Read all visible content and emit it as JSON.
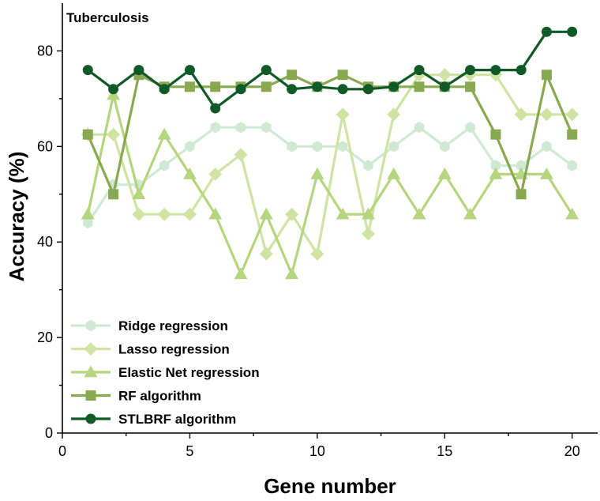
{
  "chart_data": {
    "type": "line",
    "title": "Tuberculosis",
    "xlabel": "Gene number",
    "ylabel": "Accuracy (%)",
    "xlim": [
      0,
      21
    ],
    "ylim": [
      0,
      90
    ],
    "xticks": [
      0,
      5,
      10,
      15,
      20
    ],
    "yticks": [
      0,
      20,
      40,
      60,
      80
    ],
    "legend_position": "bottom-left",
    "x": [
      1,
      2,
      3,
      4,
      5,
      6,
      7,
      8,
      9,
      10,
      11,
      12,
      13,
      14,
      15,
      16,
      17,
      18,
      19,
      20
    ],
    "series": [
      {
        "name": "Ridge regression",
        "marker": "hexagon",
        "color": "#cfe9d4",
        "values": [
          44,
          52,
          52,
          56,
          60,
          64,
          64,
          64,
          60,
          60,
          60,
          56,
          60,
          64,
          60,
          64,
          56,
          56,
          60,
          56
        ]
      },
      {
        "name": "Lasso regression",
        "marker": "diamond",
        "color": "#cfe3a3",
        "values": [
          62.5,
          62.5,
          45.8,
          45.8,
          45.8,
          54.2,
          58.3,
          37.5,
          45.8,
          37.5,
          66.7,
          41.7,
          66.7,
          75,
          75,
          75,
          75,
          66.7,
          66.7,
          66.7
        ]
      },
      {
        "name": "Elastic Net regression",
        "marker": "triangle",
        "color": "#b5d57e",
        "values": [
          45.8,
          70.8,
          50,
          62.5,
          54.2,
          45.8,
          33.3,
          45.8,
          33.3,
          54.2,
          45.8,
          45.8,
          54.2,
          45.8,
          54.2,
          45.8,
          54.2,
          54.2,
          54.2,
          45.8
        ]
      },
      {
        "name": "RF algorithm",
        "marker": "square",
        "color": "#89a950",
        "values": [
          62.5,
          50,
          75,
          72.5,
          72.5,
          72.5,
          72.5,
          72.5,
          75,
          72.5,
          75,
          72.5,
          72.5,
          72.5,
          72.5,
          72.5,
          62.5,
          50,
          75,
          62.5
        ]
      },
      {
        "name": "STLBRF algorithm",
        "marker": "circle",
        "color": "#0f5a26",
        "values": [
          76,
          72,
          76,
          72,
          76,
          68,
          72,
          76,
          72,
          72.5,
          72,
          72,
          72.5,
          76,
          72.5,
          76,
          76,
          76,
          84,
          84
        ]
      }
    ]
  }
}
